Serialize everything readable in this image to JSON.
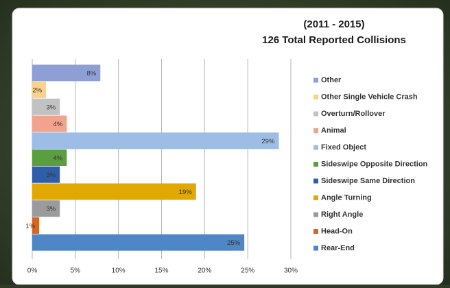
{
  "chart_data": {
    "type": "hbar",
    "title": "(2011 - 2015)",
    "subtitle": "126 Total Reported Collisions",
    "categories": [
      "Other",
      "Other Single Vehicle Crash",
      "Overturn/Rollover",
      "Animal",
      "Fixed Object",
      "Sideswipe Opposite Direction",
      "Sideswipe Same Direction",
      "Angle Turning",
      "Right Angle",
      "Head-On",
      "Rear-End"
    ],
    "values": [
      7.9,
      1.6,
      3.2,
      4.0,
      28.6,
      4.0,
      3.2,
      19.0,
      3.2,
      0.8,
      24.6
    ],
    "value_labels": [
      "8%",
      "2%",
      "3%",
      "4%",
      "29%",
      "4%",
      "3%",
      "19%",
      "3%",
      "1%",
      "25%"
    ],
    "colors": [
      "#8e9fd6",
      "#fcd18a",
      "#c2c2c2",
      "#f1a38d",
      "#9dbde6",
      "#5b9e3f",
      "#2f5ea8",
      "#e1a900",
      "#9b9b9b",
      "#d9661f",
      "#4f86c6"
    ],
    "xlim": [
      0,
      30
    ],
    "xticks": [
      {
        "value": 0,
        "label": "0%"
      },
      {
        "value": 5,
        "label": "5%"
      },
      {
        "value": 10,
        "label": "10%"
      },
      {
        "value": 15,
        "label": "15%"
      },
      {
        "value": 20,
        "label": "20%"
      },
      {
        "value": 25,
        "label": "25%"
      },
      {
        "value": 30,
        "label": "30%"
      }
    ],
    "grid": true
  }
}
